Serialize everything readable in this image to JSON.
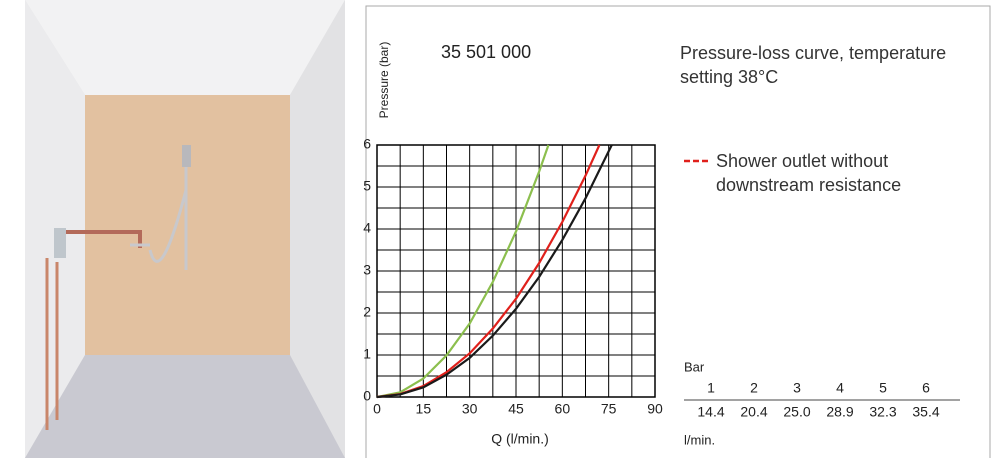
{
  "product_number": "35 501 000",
  "chart_data": {
    "type": "line",
    "title": "Pressure-loss curve, temperature setting 38°C",
    "x_label": "Q (l/min.)",
    "y_label": "Pressure (bar)",
    "xlim": [
      0,
      90
    ],
    "xticks": [
      0,
      15,
      30,
      45,
      60,
      75,
      90
    ],
    "ylim": [
      0,
      6
    ],
    "yticks": [
      0,
      1,
      2,
      3,
      4,
      5,
      6
    ],
    "grid": true,
    "xminor": [
      7.5,
      22.5,
      37.5,
      52.5,
      67.5,
      82.5
    ],
    "yminor": [
      0.5,
      1.5,
      2.5,
      3.5,
      4.5,
      5.5
    ],
    "series": [
      {
        "color": "#8cbf4e",
        "x": [
          0,
          7.5,
          15,
          22.5,
          30,
          37.5,
          45,
          52.5,
          55.5
        ],
        "values": [
          0,
          0.11,
          0.44,
          0.99,
          1.75,
          2.74,
          3.94,
          5.37,
          6
        ]
      },
      {
        "name": "Shower outlet without downstream resistance",
        "color": "#e0201b",
        "x": [
          0,
          7.5,
          15,
          22.5,
          30,
          37.5,
          45,
          52.5,
          60,
          67.5,
          72
        ],
        "values": [
          0,
          0.07,
          0.26,
          0.59,
          1.04,
          1.63,
          2.34,
          3.19,
          4.17,
          5.27,
          6
        ]
      },
      {
        "color": "#1a1a1a",
        "x": [
          0,
          7.5,
          15,
          22.5,
          30,
          37.5,
          45,
          52.5,
          60,
          67.5,
          76
        ],
        "values": [
          0,
          0.06,
          0.23,
          0.53,
          0.93,
          1.46,
          2.1,
          2.86,
          3.74,
          4.73,
          6
        ]
      }
    ]
  },
  "table": {
    "row_header": "Bar",
    "unit": "l/min.",
    "rows": [
      [
        "1",
        "2",
        "3",
        "4",
        "5",
        "6"
      ],
      [
        "14.4",
        "20.4",
        "25.0",
        "28.9",
        "32.3",
        "35.4"
      ]
    ]
  }
}
